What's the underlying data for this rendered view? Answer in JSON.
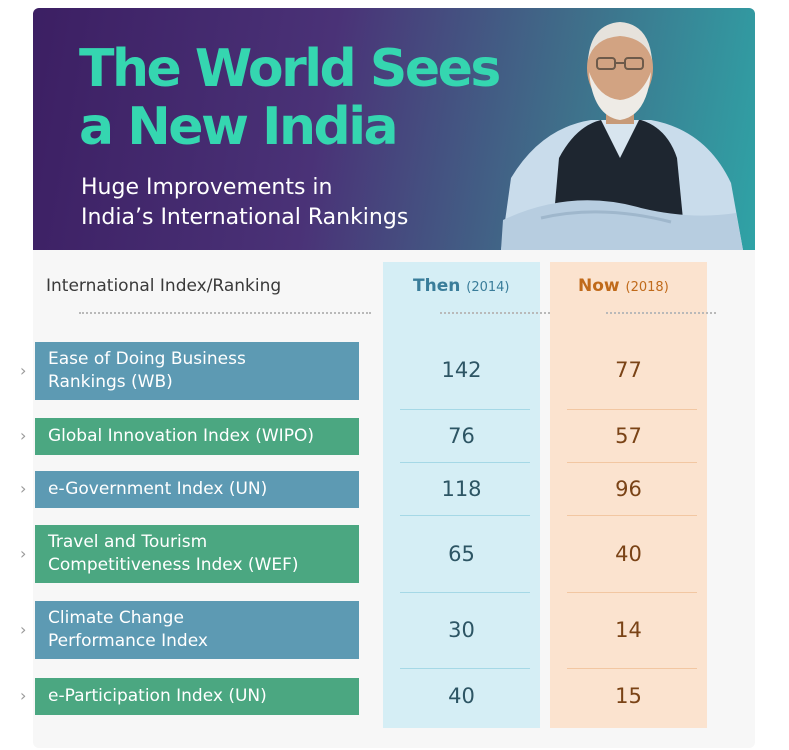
{
  "banner": {
    "title_line1": "The World Sees",
    "title_line2": "a New India",
    "subtitle_line1": "Huge Improvements in",
    "subtitle_line2": "India’s International Rankings"
  },
  "table": {
    "col_index": "International Index/Ranking",
    "col_then": "Then",
    "col_then_year": "(2014)",
    "col_now": "Now",
    "col_now_year": "(2018)",
    "rows": [
      {
        "name_line1": "Ease of Doing Business",
        "name_line2": "Rankings (WB)",
        "then": "142",
        "now": "77"
      },
      {
        "name_line1": "Global Innovation Index (WIPO)",
        "name_line2": "",
        "then": "76",
        "now": "57"
      },
      {
        "name_line1": "e-Government Index (UN)",
        "name_line2": "",
        "then": "118",
        "now": "96"
      },
      {
        "name_line1": "Travel and Tourism",
        "name_line2": "Competitiveness Index (WEF)",
        "then": "65",
        "now": "40"
      },
      {
        "name_line1": "Climate Change",
        "name_line2": "Performance Index",
        "then": "30",
        "now": "14"
      },
      {
        "name_line1": "e-Participation Index (UN)",
        "name_line2": "",
        "then": "40",
        "now": "15"
      }
    ]
  },
  "colors": {
    "title": "#35d6b0",
    "label_blue": "#5d9ab3",
    "label_green": "#4ba781",
    "then_column": "#d5eef5",
    "now_column": "#fbe3cf"
  },
  "icons": [
    "chevron-right-icon"
  ]
}
